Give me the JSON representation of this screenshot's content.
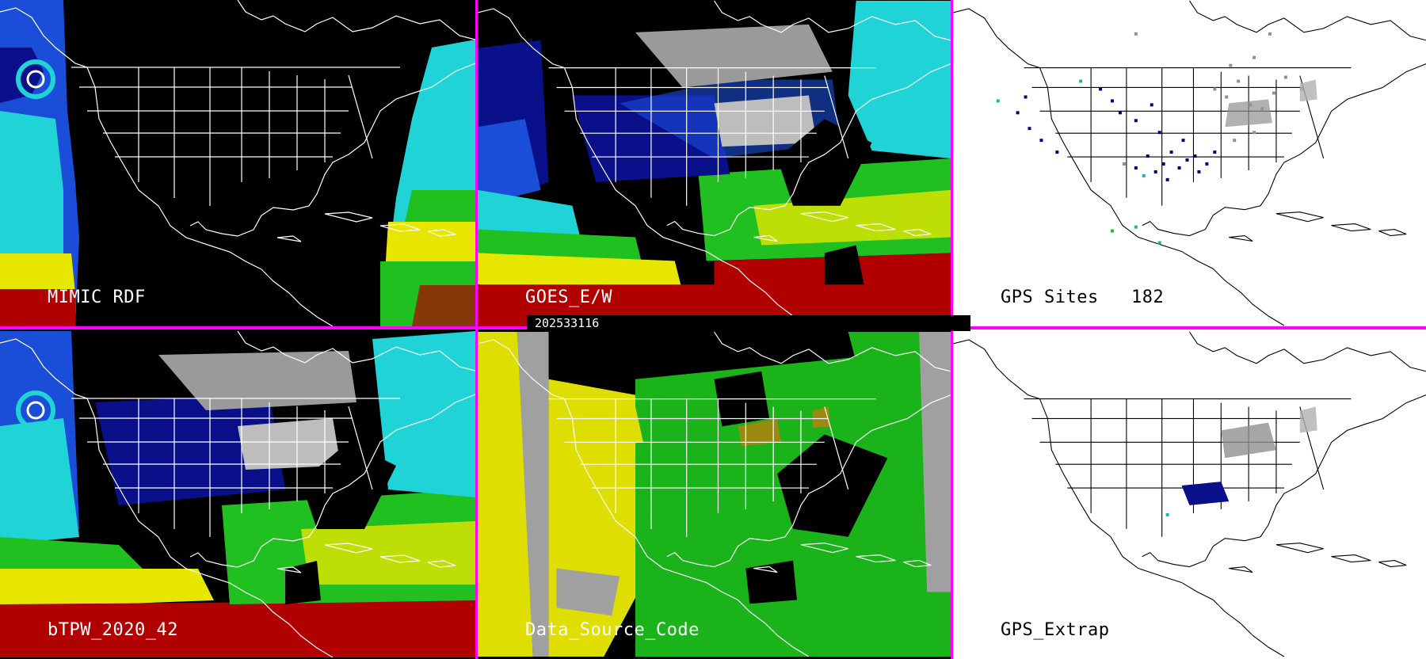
{
  "timestamp": "202533116",
  "colors": {
    "separator": "#ff00ff",
    "ocean_dark": "#000000",
    "land_outline_dark": "#ffffff",
    "land_outline_light": "#000000",
    "tpw_low": "#0a0f8a",
    "tpw_mid_low": "#1a4ed8",
    "tpw_mid": "#1fd3d6",
    "tpw_mid_high": "#20c020",
    "tpw_high": "#e6e600",
    "tpw_very_high": "#b00000",
    "snow_gray": "#9a9a9a",
    "source_green": "#1ab31a",
    "source_yellow": "#dede00",
    "source_gray": "#a0a0a0",
    "source_olive": "#9a8a10",
    "gps_site_blue": "#000080",
    "gps_site_cyan": "#20b0b0",
    "gps_site_gray": "#909090"
  },
  "panels": [
    {
      "id": "mimic",
      "label": "MIMIC RDF"
    },
    {
      "id": "goes",
      "label": "GOES_E/W"
    },
    {
      "id": "gps_sites",
      "label": "GPS Sites",
      "count": "182"
    },
    {
      "id": "btpw",
      "label": "bTPW_2020_42"
    },
    {
      "id": "source",
      "label": "Data_Source_Code"
    },
    {
      "id": "extrap",
      "label": "GPS_Extrap"
    }
  ]
}
